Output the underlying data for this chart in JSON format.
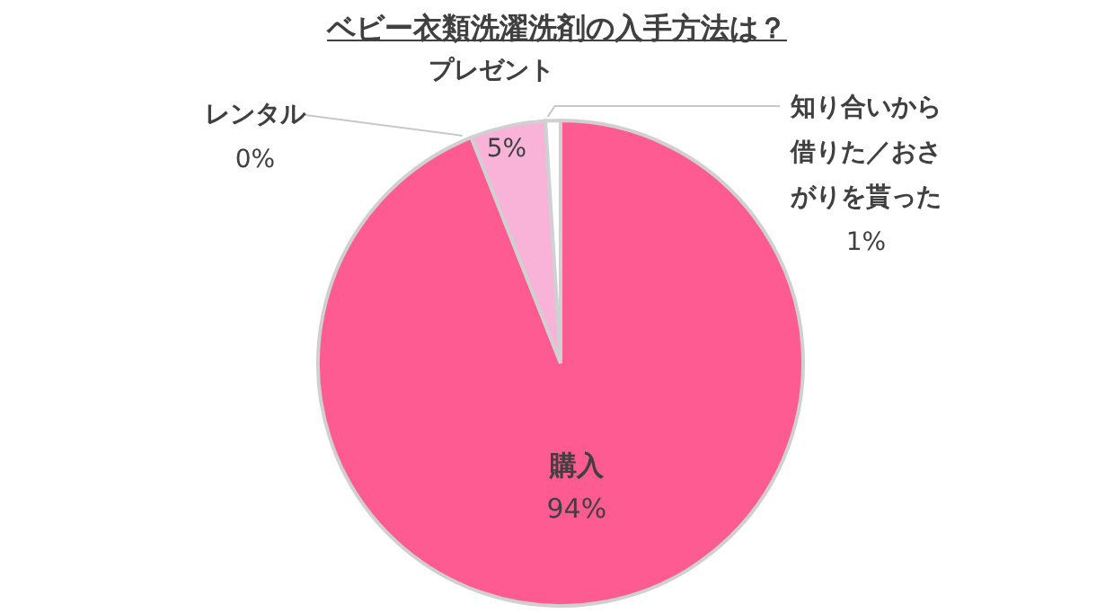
{
  "chart_data": {
    "type": "pie",
    "title": "ベビー衣類洗濯洗剤の入手方法は？",
    "categories": [
      "購入",
      "レンタル",
      "プレゼント",
      "知り合いから借りた／おさがりを貰った"
    ],
    "values": [
      94,
      0,
      5,
      1
    ],
    "value_labels": [
      "94%",
      "0%",
      "5%",
      "1%"
    ],
    "colors": [
      "#ff5b93",
      "#f0a0c8",
      "#f9b3d9",
      "#ffffff"
    ]
  }
}
